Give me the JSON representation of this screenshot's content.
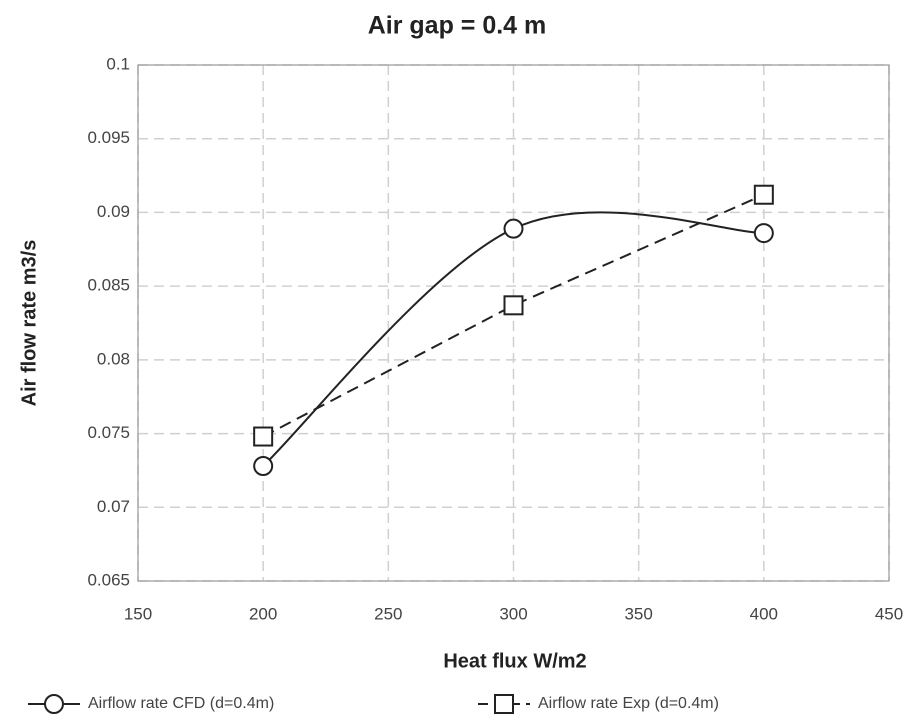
{
  "chart_data": {
    "type": "line",
    "title": "Air gap = 0.4 m",
    "x_label": "Heat flux W/m2",
    "y_label": "Air flow rate m3/s",
    "x": [
      200,
      300,
      400
    ],
    "series": [
      {
        "name": "Airflow rate CFD (d=0.4m)",
        "color": "#222222",
        "marker": "circle",
        "smooth": true,
        "dash": false,
        "values": [
          0.0728,
          0.0889,
          0.0886
        ]
      },
      {
        "name": "Airflow rate Exp (d=0.4m)",
        "color": "#222222",
        "marker": "square",
        "smooth": false,
        "dash": true,
        "values": [
          0.0748,
          0.0837,
          0.0912
        ]
      }
    ],
    "xlim": [
      150,
      450
    ],
    "xticks": [
      150,
      200,
      250,
      300,
      350,
      400,
      450
    ],
    "ylim": [
      0.065,
      0.1
    ],
    "yticks": [
      0.065,
      0.07,
      0.075,
      0.08,
      0.085,
      0.09,
      0.095,
      0.1
    ],
    "grid": true,
    "legend": "bottom"
  }
}
